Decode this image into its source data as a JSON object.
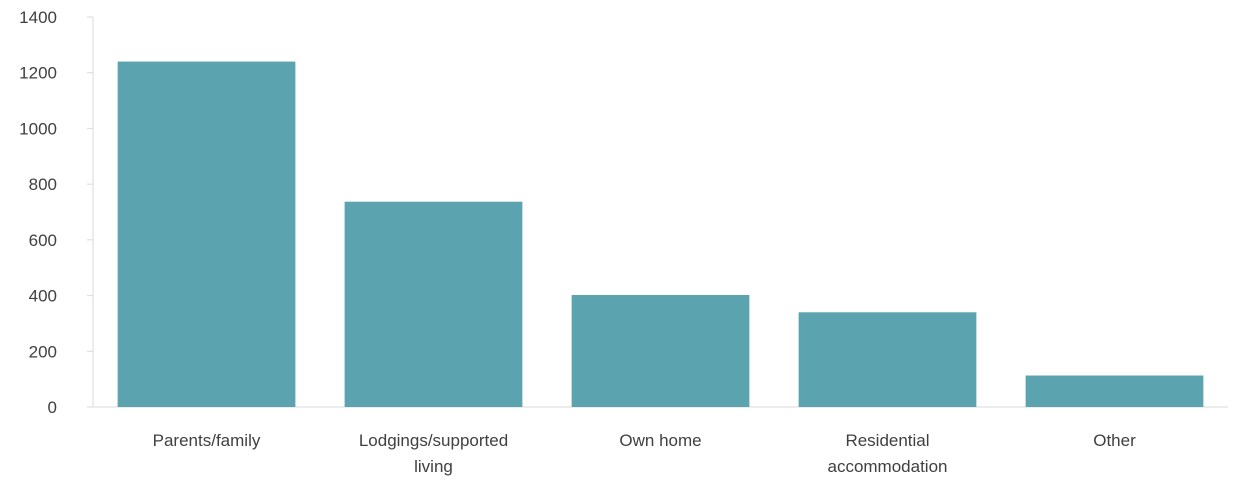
{
  "chart_data": {
    "type": "bar",
    "title": "",
    "xlabel": "",
    "ylabel": "",
    "categories": [
      [
        "Parents/family"
      ],
      [
        "Lodgings/supported",
        "living"
      ],
      [
        "Own home"
      ],
      [
        "Residential",
        "accommodation"
      ],
      [
        "Other"
      ]
    ],
    "values": [
      1240,
      737,
      402,
      340,
      113
    ],
    "ylim": [
      0,
      1400
    ],
    "yticks": [
      0,
      200,
      400,
      600,
      800,
      1000,
      1200,
      1400
    ],
    "grid": false,
    "legend": "none",
    "bar_color": "#5BA3AF",
    "axis_color": "#D9D9D9"
  }
}
